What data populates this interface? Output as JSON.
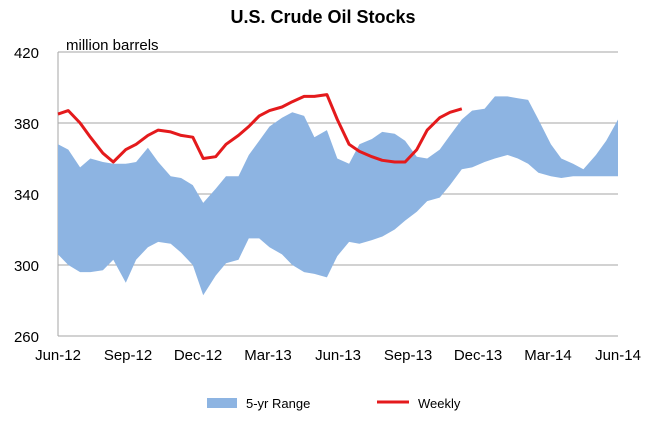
{
  "chart_data": {
    "type": "area",
    "title": "U.S. Crude Oil Stocks",
    "unit_label": "million barrels",
    "xlabel": "",
    "ylabel": "",
    "ylim": [
      260,
      420
    ],
    "yticks": [
      260,
      300,
      340,
      380,
      420
    ],
    "grid": true,
    "legend_position": "bottom",
    "x_tick_labels": [
      "Jun-12",
      "Sep-12",
      "Dec-12",
      "Mar-13",
      "Jun-13",
      "Sep-13",
      "Dec-13",
      "Mar-14",
      "Jun-14"
    ],
    "colors": {
      "range": "#8db4e2",
      "weekly": "#e41a1c",
      "grid": "#a6a6a6"
    },
    "series": [
      {
        "name": "5-yr Range",
        "kind": "band",
        "dates": [
          "2012-06-01",
          "2012-06-15",
          "2012-07-01",
          "2012-07-15",
          "2012-08-01",
          "2012-08-15",
          "2012-09-01",
          "2012-09-15",
          "2012-10-01",
          "2012-10-15",
          "2012-11-01",
          "2012-11-15",
          "2012-12-01",
          "2012-12-15",
          "2013-01-01",
          "2013-01-15",
          "2013-02-01",
          "2013-02-15",
          "2013-03-01",
          "2013-03-15",
          "2013-04-01",
          "2013-04-15",
          "2013-05-01",
          "2013-05-15",
          "2013-06-01",
          "2013-06-15",
          "2013-07-01",
          "2013-07-15",
          "2013-08-01",
          "2013-08-15",
          "2013-09-01",
          "2013-09-15",
          "2013-10-01",
          "2013-10-15",
          "2013-11-01",
          "2013-11-15",
          "2013-12-01",
          "2013-12-15",
          "2014-01-01",
          "2014-01-15",
          "2014-02-01",
          "2014-02-15",
          "2014-03-01",
          "2014-03-15",
          "2014-04-01",
          "2014-04-15",
          "2014-05-01",
          "2014-05-15",
          "2014-06-01",
          "2014-06-15",
          "2014-07-01"
        ],
        "high": [
          368,
          365,
          355,
          360,
          358,
          357,
          357,
          358,
          366,
          358,
          350,
          349,
          345,
          335,
          343,
          350,
          350,
          362,
          370,
          378,
          383,
          386,
          384,
          372,
          376,
          360,
          357,
          368,
          371,
          375,
          374,
          370,
          361,
          360,
          365,
          373,
          382,
          387,
          388,
          395,
          395,
          394,
          393,
          382,
          368,
          360,
          357,
          354,
          362,
          370,
          382
        ],
        "low": [
          306,
          300,
          296,
          296,
          297,
          303,
          290,
          303,
          310,
          313,
          312,
          307,
          300,
          283,
          294,
          301,
          303,
          315,
          315,
          310,
          306,
          300,
          296,
          295,
          293,
          305,
          313,
          312,
          314,
          316,
          320,
          325,
          330,
          336,
          338,
          345,
          354,
          355,
          358,
          360,
          362,
          360,
          357,
          352,
          350,
          349,
          350,
          350,
          350,
          350,
          350
        ]
      },
      {
        "name": "Weekly",
        "kind": "line",
        "dates": [
          "2012-06-01",
          "2012-06-15",
          "2012-07-01",
          "2012-07-15",
          "2012-08-01",
          "2012-08-15",
          "2012-09-01",
          "2012-09-15",
          "2012-10-01",
          "2012-10-15",
          "2012-11-01",
          "2012-11-15",
          "2012-12-01",
          "2012-12-15",
          "2013-01-01",
          "2013-01-15",
          "2013-02-01",
          "2013-02-15",
          "2013-03-01",
          "2013-03-15",
          "2013-04-01",
          "2013-04-15",
          "2013-05-01",
          "2013-05-15",
          "2013-06-01",
          "2013-06-15",
          "2013-07-01",
          "2013-07-15",
          "2013-08-01",
          "2013-08-15",
          "2013-09-01",
          "2013-09-15",
          "2013-10-01",
          "2013-10-15",
          "2013-11-01",
          "2013-11-15",
          "2013-12-01"
        ],
        "values": [
          385,
          387,
          380,
          372,
          363,
          358,
          365,
          368,
          373,
          376,
          375,
          373,
          372,
          360,
          361,
          368,
          373,
          378,
          384,
          387,
          389,
          392,
          395,
          395,
          396,
          382,
          368,
          364,
          361,
          359,
          358,
          358,
          365,
          376,
          383,
          386,
          388
        ]
      }
    ]
  }
}
